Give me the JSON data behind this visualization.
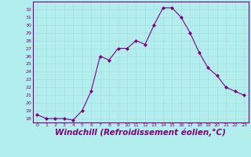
{
  "x": [
    0,
    1,
    2,
    3,
    4,
    5,
    6,
    7,
    8,
    9,
    10,
    11,
    12,
    13,
    14,
    15,
    16,
    17,
    18,
    19,
    20,
    21,
    22,
    23
  ],
  "y": [
    18.5,
    18.0,
    18.0,
    18.0,
    17.8,
    19.0,
    21.5,
    26.0,
    25.5,
    27.0,
    27.0,
    28.0,
    27.5,
    30.0,
    32.2,
    32.2,
    31.0,
    29.0,
    26.5,
    24.5,
    23.5,
    22.0,
    21.5,
    21.0
  ],
  "line_color": "#800080",
  "marker": "D",
  "marker_size": 2,
  "bg_color": "#b2eeee",
  "grid_color": "#aadddd",
  "xlabel": "Windchill (Refroidissement éolien,°C)",
  "xlabel_fontsize": 7.5,
  "tick_color": "#800080",
  "label_color": "#800080",
  "ylim": [
    17.5,
    33
  ],
  "xlim": [
    -0.5,
    23.5
  ],
  "yticks": [
    18,
    19,
    20,
    21,
    22,
    23,
    24,
    25,
    26,
    27,
    28,
    29,
    30,
    31,
    32
  ],
  "xticks": [
    0,
    1,
    2,
    3,
    4,
    5,
    6,
    7,
    8,
    9,
    10,
    11,
    12,
    13,
    14,
    15,
    16,
    17,
    18,
    19,
    20,
    21,
    22,
    23
  ]
}
